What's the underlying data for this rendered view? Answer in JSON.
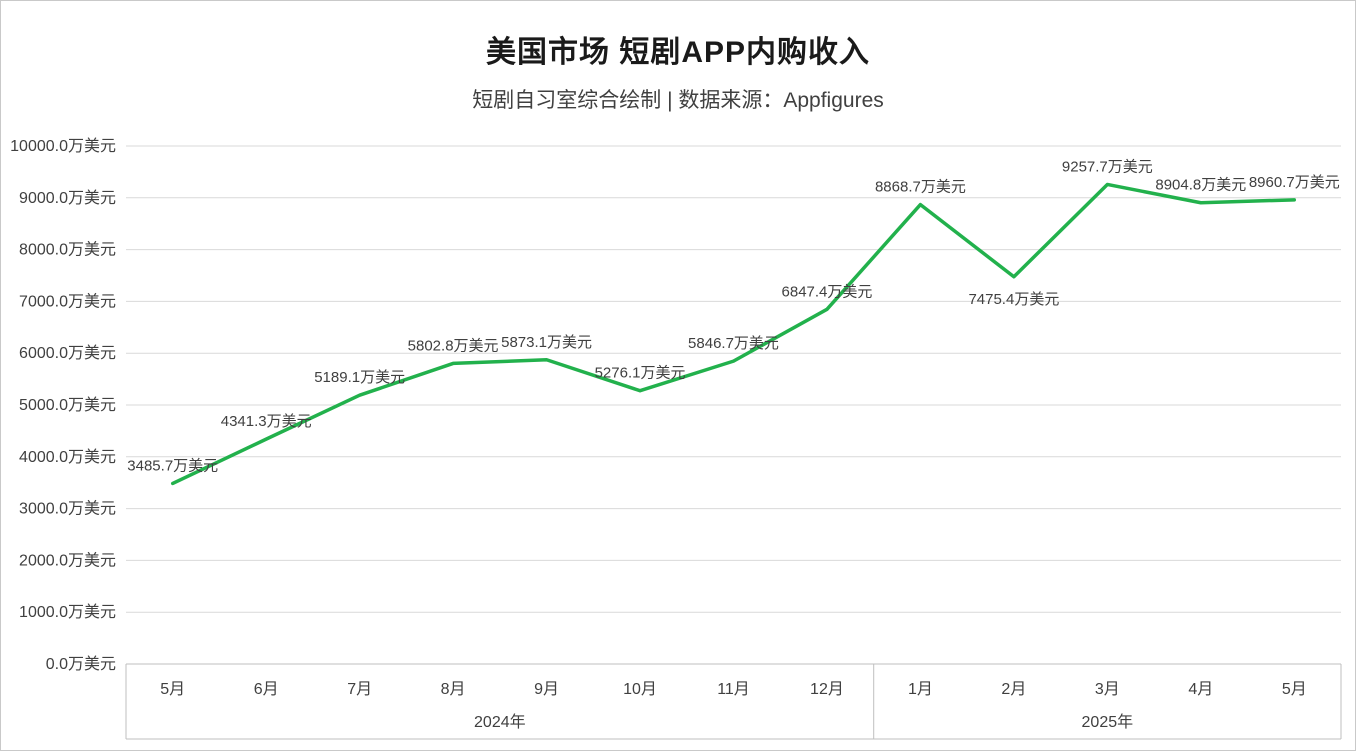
{
  "header": {
    "title": "美国市场 短剧APP内购收入",
    "subtitle": "短剧自习室综合绘制 | 数据来源：Appfigures"
  },
  "chart_data": {
    "type": "line",
    "title": "美国市场 短剧APP内购收入",
    "subtitle": "短剧自习室综合绘制 | 数据来源：Appfigures",
    "ylabel": "",
    "xlabel": "",
    "ylim": [
      0,
      10000
    ],
    "ytick_step": 1000,
    "ytick_labels": [
      "0.0万美元",
      "1000.0万美元",
      "2000.0万美元",
      "3000.0万美元",
      "4000.0万美元",
      "5000.0万美元",
      "6000.0万美元",
      "7000.0万美元",
      "8000.0万美元",
      "9000.0万美元",
      "10000.0万美元"
    ],
    "categories": [
      "5月",
      "6月",
      "7月",
      "8月",
      "9月",
      "10月",
      "11月",
      "12月",
      "1月",
      "2月",
      "3月",
      "4月",
      "5月"
    ],
    "values": [
      3485.7,
      4341.3,
      5189.1,
      5802.8,
      5873.1,
      5276.1,
      5846.7,
      6847.4,
      8868.7,
      7475.4,
      9257.7,
      8904.8,
      8960.7
    ],
    "point_labels": [
      "3485.7万美元",
      "4341.3万美元",
      "5189.1万美元",
      "5802.8万美元",
      "5873.1万美元",
      "5276.1万美元",
      "5846.7万美元",
      "6847.4万美元",
      "8868.7万美元",
      "7475.4万美元",
      "9257.7万美元",
      "8904.8万美元",
      "8960.7万美元"
    ],
    "label_positions": [
      "above",
      "above",
      "above",
      "above",
      "above",
      "above",
      "above",
      "above",
      "above",
      "below",
      "above",
      "above",
      "above"
    ],
    "year_groups": [
      {
        "label": "2024年",
        "start": 0,
        "end": 7
      },
      {
        "label": "2025年",
        "start": 8,
        "end": 12
      }
    ],
    "grid": true,
    "legend": "none",
    "series_color": "#22b14c",
    "grid_color": "#d9d9d9",
    "axis_color": "#bfbfbf",
    "text_color": "#404040"
  }
}
